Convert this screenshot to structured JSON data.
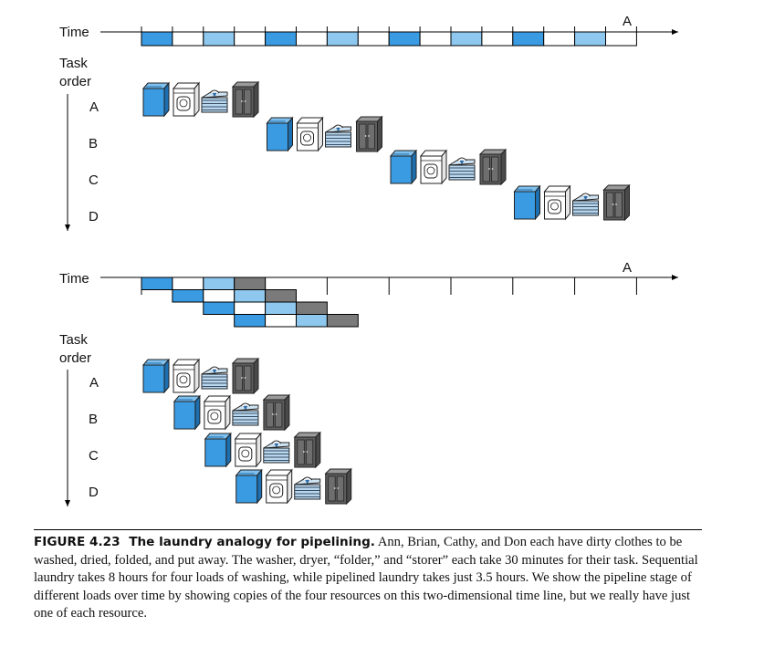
{
  "diagram": {
    "sequential": {
      "time_label": "Time",
      "task_order_label": [
        "Task",
        "order"
      ],
      "end_marker": "A",
      "tasks": [
        "A",
        "B",
        "C",
        "D"
      ],
      "stage_colors": [
        "#3b9be2",
        "#ffffff",
        "#8ec8ef",
        "#ffffff"
      ]
    },
    "pipelined": {
      "time_label": "Time",
      "task_order_label": [
        "Task",
        "order"
      ],
      "end_marker": "A",
      "tasks": [
        "A",
        "B",
        "C",
        "D"
      ]
    },
    "colors": {
      "washer": "#3b9be2",
      "dryer": "#ffffff",
      "folder_bar": "#8ec8ef",
      "storer": "#7a7a7a",
      "icon_outline": "#222222"
    }
  },
  "caption": {
    "figure_number": "FIGURE 4.23",
    "title": "The laundry analogy for pipelining.",
    "text": "Ann, Brian, Cathy, and Don each have dirty clothes to be washed, dried, folded, and put away. The washer, dryer, “folder,” and “storer” each take 30 minutes for their task. Sequential laundry takes 8 hours for four loads of washing, while pipelined laundry takes just 3.5 hours. We show the pipeline stage of different loads over time by showing copies of the four resources on this two-dimensional time line, but we really have just one of each resource."
  }
}
